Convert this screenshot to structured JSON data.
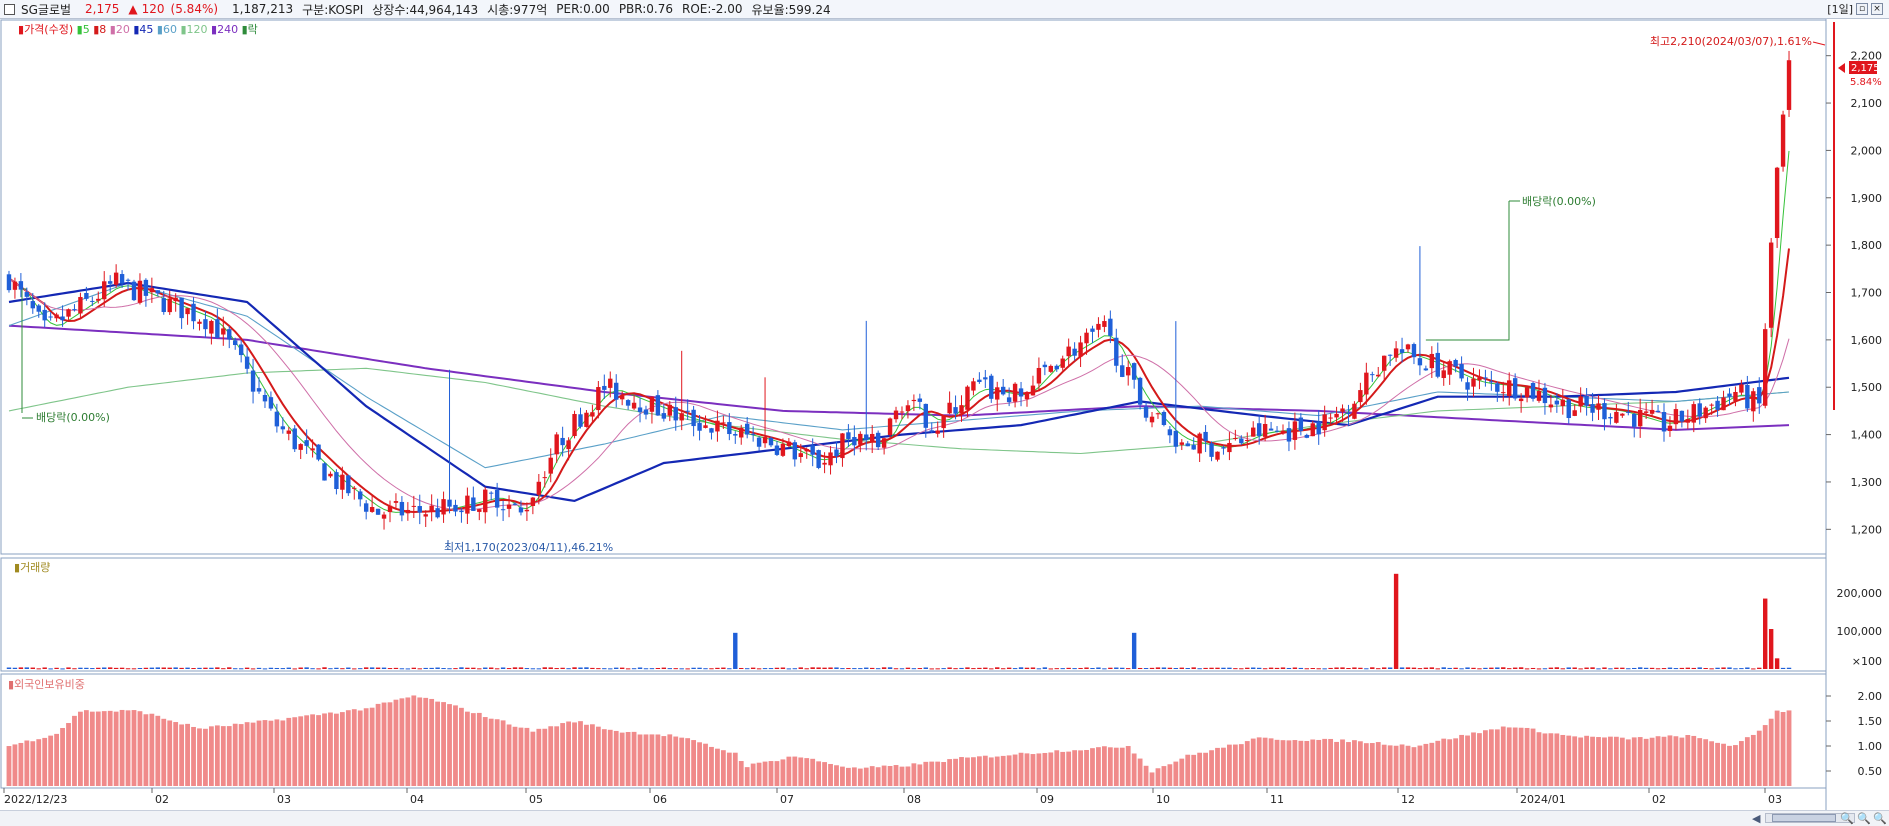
{
  "header": {
    "name": "SG글로벌",
    "price": "2,175",
    "change_arrow": "▲",
    "change": "120",
    "change_pct": "(5.84%)",
    "volume": "1,187,213",
    "market": "구분:KOSPI",
    "shares": "상장수:44,964,143",
    "mcap": "시총:977억",
    "per": "PER:0.00",
    "pbr": "PBR:0.76",
    "roe": "ROE:-2.00",
    "float_ratio": "유보율:599.24",
    "period": "[1일]"
  },
  "colors": {
    "up": "#e0161d",
    "down": "#1f5fd8",
    "ma5": "#36c23a",
    "ma8": "#d41a1a",
    "ma20": "#cf6fa8",
    "ma45": "#1428b4",
    "ma60": "#5aa0c8",
    "ma120": "#7fc58a",
    "ma240": "#7b2fbf",
    "event": "#2e8b3a",
    "foreign": "#f08a8a"
  },
  "legend": {
    "price_title": "가격(수정)",
    "ma": [
      "5",
      "8",
      "20",
      "45",
      "60",
      "120",
      "240"
    ],
    "drop_label": "락",
    "volume_title": "거래량",
    "foreign_title": "외국인보유비중"
  },
  "chart_data": [
    {
      "type": "candlestick",
      "ylim": [
        1150,
        2250
      ],
      "yticks": [
        "2,200",
        "2,100",
        "2,000",
        "1,900",
        "1,800",
        "1,700",
        "1,600",
        "1,500",
        "1,400",
        "1,300",
        "1,200"
      ],
      "x_labels": [
        "2022/12/23",
        "02",
        "03",
        "04",
        "05",
        "06",
        "07",
        "08",
        "09",
        "10",
        "11",
        "12",
        "2024/01",
        "02",
        "03"
      ],
      "candle_count": 300,
      "keypoints": [
        [
          0,
          1730
        ],
        [
          6,
          1620
        ],
        [
          18,
          1720
        ],
        [
          34,
          1640
        ],
        [
          38,
          1570
        ],
        [
          45,
          1420
        ],
        [
          55,
          1300
        ],
        [
          62,
          1235
        ],
        [
          72,
          1240
        ],
        [
          82,
          1270
        ],
        [
          86,
          1230
        ],
        [
          92,
          1380
        ],
        [
          100,
          1500
        ],
        [
          106,
          1470
        ],
        [
          112,
          1440
        ],
        [
          120,
          1410
        ],
        [
          128,
          1385
        ],
        [
          136,
          1340
        ],
        [
          142,
          1400
        ],
        [
          146,
          1370
        ],
        [
          150,
          1470
        ],
        [
          156,
          1420
        ],
        [
          162,
          1500
        ],
        [
          170,
          1480
        ],
        [
          176,
          1560
        ],
        [
          184,
          1620
        ],
        [
          190,
          1470
        ],
        [
          196,
          1390
        ],
        [
          204,
          1370
        ],
        [
          210,
          1405
        ],
        [
          216,
          1410
        ],
        [
          222,
          1430
        ],
        [
          226,
          1480
        ],
        [
          232,
          1580
        ],
        [
          238,
          1555
        ],
        [
          246,
          1510
        ],
        [
          254,
          1500
        ],
        [
          262,
          1460
        ],
        [
          270,
          1450
        ],
        [
          278,
          1420
        ],
        [
          284,
          1450
        ],
        [
          290,
          1490
        ],
        [
          294,
          1460
        ],
        [
          297,
          1960
        ],
        [
          299,
          2175
        ]
      ],
      "ma_lines": [
        {
          "name": "240",
          "values": [
            [
              0,
              1630
            ],
            [
              40,
              1600
            ],
            [
              70,
              1540
            ],
            [
              100,
              1490
            ],
            [
              130,
              1450
            ],
            [
              160,
              1440
            ],
            [
              190,
              1460
            ],
            [
              220,
              1450
            ],
            [
              250,
              1430
            ],
            [
              280,
              1410
            ],
            [
              299,
              1420
            ]
          ]
        },
        {
          "name": "120",
          "values": [
            [
              0,
              1450
            ],
            [
              20,
              1500
            ],
            [
              40,
              1530
            ],
            [
              60,
              1540
            ],
            [
              80,
              1510
            ],
            [
              100,
              1460
            ],
            [
              120,
              1420
            ],
            [
              140,
              1390
            ],
            [
              160,
              1370
            ],
            [
              180,
              1360
            ],
            [
              200,
              1380
            ],
            [
              220,
              1420
            ],
            [
              240,
              1450
            ],
            [
              260,
              1460
            ],
            [
              280,
              1470
            ],
            [
              299,
              1490
            ]
          ]
        },
        {
          "name": "60",
          "values": [
            [
              0,
              1630
            ],
            [
              20,
              1720
            ],
            [
              40,
              1650
            ],
            [
              60,
              1480
            ],
            [
              80,
              1330
            ],
            [
              100,
              1380
            ],
            [
              120,
              1440
            ],
            [
              140,
              1410
            ],
            [
              160,
              1430
            ],
            [
              180,
              1450
            ],
            [
              200,
              1460
            ],
            [
              220,
              1440
            ],
            [
              240,
              1490
            ],
            [
              260,
              1480
            ],
            [
              280,
              1470
            ],
            [
              299,
              1490
            ]
          ]
        },
        {
          "name": "45",
          "values": [
            [
              0,
              1680
            ],
            [
              20,
              1720
            ],
            [
              40,
              1680
            ],
            [
              60,
              1460
            ],
            [
              80,
              1290
            ],
            [
              95,
              1260
            ],
            [
              110,
              1340
            ],
            [
              130,
              1370
            ],
            [
              150,
              1400
            ],
            [
              170,
              1420
            ],
            [
              190,
              1470
            ],
            [
              210,
              1440
            ],
            [
              225,
              1420
            ],
            [
              240,
              1480
            ],
            [
              260,
              1480
            ],
            [
              280,
              1490
            ],
            [
              299,
              1520
            ]
          ]
        }
      ]
    },
    {
      "type": "bar",
      "name": "거래량",
      "ylim": [
        0,
        260000
      ],
      "yticks": [
        "200,000",
        "100,000",
        "×100"
      ],
      "spikes": [
        [
          122,
          95000
        ],
        [
          189,
          95000
        ],
        [
          233,
          250000
        ],
        [
          295,
          185000
        ],
        [
          296,
          105000
        ],
        [
          297,
          28000
        ]
      ]
    },
    {
      "type": "bar",
      "name": "외국인보유비중",
      "ylim": [
        0.2,
        2.2
      ],
      "yticks": [
        "2.00",
        "1.50",
        "1.00",
        "0.50"
      ],
      "keypoints": [
        [
          0,
          1.0
        ],
        [
          8,
          1.25
        ],
        [
          12,
          1.7
        ],
        [
          22,
          1.7
        ],
        [
          26,
          1.55
        ],
        [
          32,
          1.35
        ],
        [
          40,
          1.45
        ],
        [
          50,
          1.6
        ],
        [
          60,
          1.75
        ],
        [
          68,
          2.0
        ],
        [
          72,
          1.9
        ],
        [
          80,
          1.6
        ],
        [
          88,
          1.3
        ],
        [
          95,
          1.5
        ],
        [
          102,
          1.3
        ],
        [
          112,
          1.2
        ],
        [
          122,
          0.85
        ],
        [
          124,
          0.6
        ],
        [
          132,
          0.8
        ],
        [
          142,
          0.55
        ],
        [
          150,
          0.6
        ],
        [
          160,
          0.75
        ],
        [
          176,
          0.9
        ],
        [
          188,
          1.0
        ],
        [
          192,
          0.5
        ],
        [
          198,
          0.8
        ],
        [
          210,
          1.15
        ],
        [
          226,
          1.1
        ],
        [
          236,
          1.0
        ],
        [
          252,
          1.4
        ],
        [
          262,
          1.2
        ],
        [
          272,
          1.15
        ],
        [
          282,
          1.2
        ],
        [
          290,
          1.0
        ],
        [
          294,
          1.3
        ],
        [
          297,
          1.7
        ],
        [
          299,
          1.7
        ]
      ]
    }
  ],
  "annotations": {
    "high": "최고2,210(2024/03/07),1.61%",
    "low": "최저1,170(2023/04/11),46.21%",
    "dividend1": "배당락(0.00%)",
    "dividend2": "배당락(0.00%)",
    "last_price": "2,175",
    "last_pct": "5.84%"
  }
}
